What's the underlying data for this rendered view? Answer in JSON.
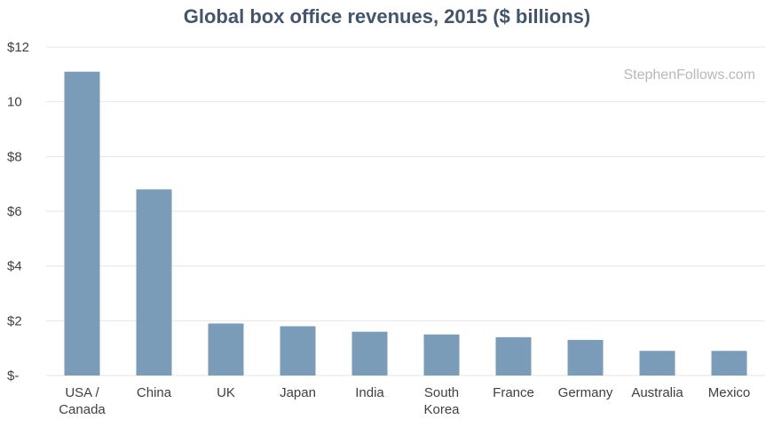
{
  "chart_data": {
    "type": "bar",
    "title": "Global box office revenues, 2015 ($ billions)",
    "watermark": "StephenFollows.com",
    "categories": [
      [
        "USA /",
        "Canada"
      ],
      [
        "China"
      ],
      [
        "UK"
      ],
      [
        "Japan"
      ],
      [
        "India"
      ],
      [
        "South",
        "Korea"
      ],
      [
        "France"
      ],
      [
        "Germany"
      ],
      [
        "Australia"
      ],
      [
        "Mexico"
      ]
    ],
    "values": [
      11.1,
      6.8,
      1.9,
      1.8,
      1.6,
      1.5,
      1.4,
      1.3,
      0.9,
      0.9
    ],
    "ylim": [
      0,
      12
    ],
    "ytick_values": [
      0,
      2,
      4,
      6,
      8,
      10,
      12
    ],
    "ytick_labels": [
      "$-",
      "$2",
      "$4",
      "$6",
      "$8",
      "10",
      "$12"
    ],
    "xlabel": "",
    "ylabel": "",
    "grid": true,
    "colors": {
      "bar": "#7a9cb8",
      "title": "#44546a",
      "grid": "#e6e6e6",
      "tick_text": "#404040",
      "watermark": "#b8b8b8"
    }
  }
}
